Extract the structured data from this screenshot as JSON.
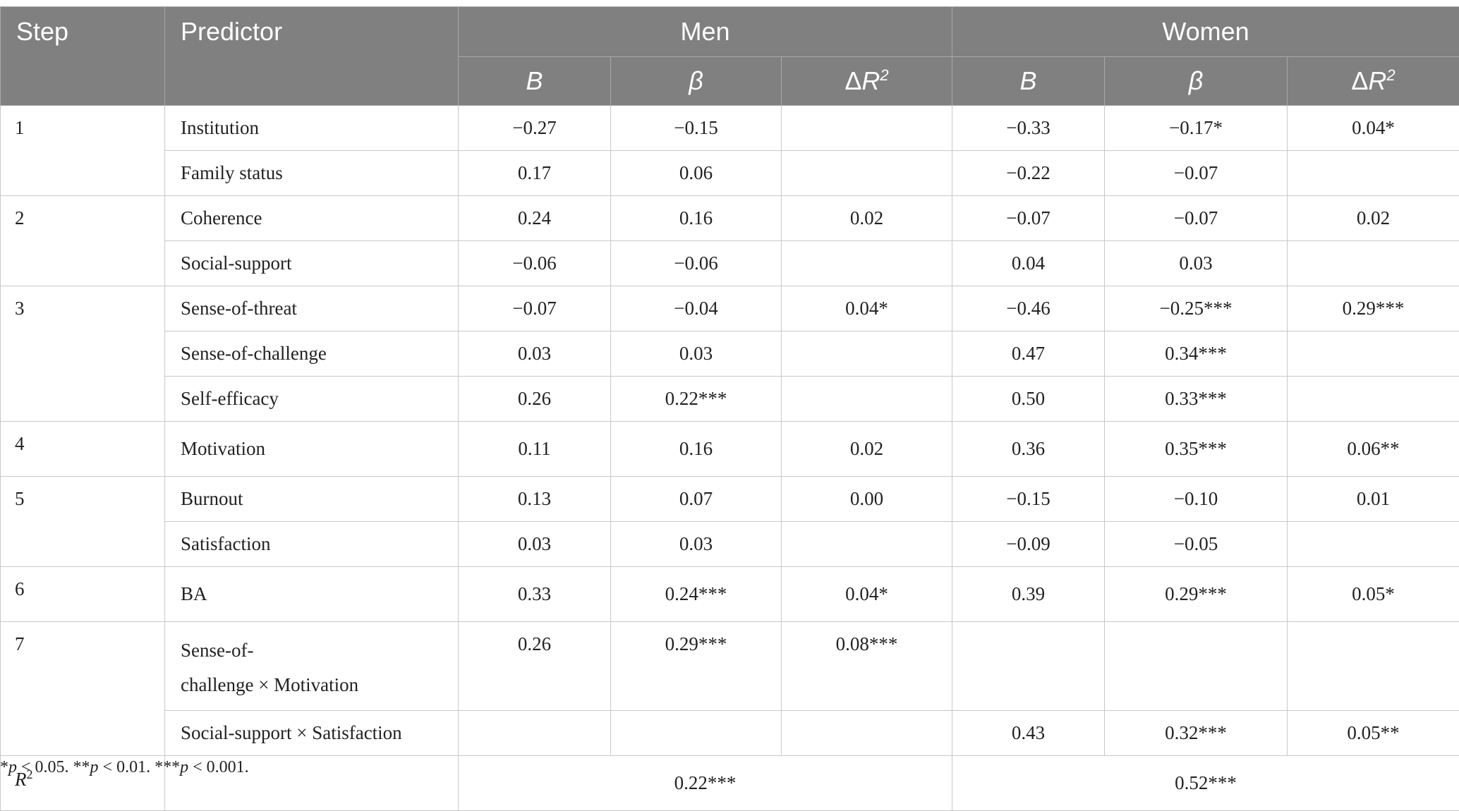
{
  "table": {
    "headers": {
      "step": "Step",
      "predictor": "Predictor",
      "men": "Men",
      "women": "Women",
      "sub": [
        "B",
        "β",
        "ΔR2",
        "B",
        "β",
        "ΔR2"
      ]
    },
    "rows": [
      {
        "step": "1",
        "predictor": "Institution",
        "men_b": "−0.27",
        "men_beta": "−0.15",
        "men_dr2": "",
        "women_b": "−0.33",
        "women_beta": "−0.17*",
        "women_dr2": "0.04*"
      },
      {
        "step": "",
        "predictor": "Family status",
        "men_b": "0.17",
        "men_beta": "0.06",
        "men_dr2": "",
        "women_b": "−0.22",
        "women_beta": "−0.07",
        "women_dr2": ""
      },
      {
        "step": "2",
        "predictor": "Coherence",
        "men_b": "0.24",
        "men_beta": "0.16",
        "men_dr2": "0.02",
        "women_b": "−0.07",
        "women_beta": "−0.07",
        "women_dr2": "0.02"
      },
      {
        "step": "",
        "predictor": "Social-support",
        "men_b": "−0.06",
        "men_beta": "−0.06",
        "men_dr2": "",
        "women_b": "0.04",
        "women_beta": "0.03",
        "women_dr2": ""
      },
      {
        "step": "3",
        "predictor": "Sense-of-threat",
        "men_b": "−0.07",
        "men_beta": "−0.04",
        "men_dr2": "0.04*",
        "women_b": "−0.46",
        "women_beta": "−0.25***",
        "women_dr2": "0.29***"
      },
      {
        "step": "",
        "predictor": "Sense-of-challenge",
        "men_b": "0.03",
        "men_beta": "0.03",
        "men_dr2": "",
        "women_b": "0.47",
        "women_beta": "0.34***",
        "women_dr2": ""
      },
      {
        "step": "",
        "predictor": "Self-efficacy",
        "men_b": "0.26",
        "men_beta": "0.22***",
        "men_dr2": "",
        "women_b": "0.50",
        "women_beta": "0.33***",
        "women_dr2": ""
      },
      {
        "step": "4",
        "predictor": "Motivation",
        "men_b": "0.11",
        "men_beta": "0.16",
        "men_dr2": "0.02",
        "women_b": "0.36",
        "women_beta": "0.35***",
        "women_dr2": "0.06**"
      },
      {
        "step": "5",
        "predictor": "Burnout",
        "men_b": "0.13",
        "men_beta": "0.07",
        "men_dr2": "0.00",
        "women_b": "−0.15",
        "women_beta": "−0.10",
        "women_dr2": "0.01"
      },
      {
        "step": "",
        "predictor": "Satisfaction",
        "men_b": "0.03",
        "men_beta": "0.03",
        "men_dr2": "",
        "women_b": "−0.09",
        "women_beta": "−0.05",
        "women_dr2": ""
      },
      {
        "step": "6",
        "predictor": "BA",
        "men_b": "0.33",
        "men_beta": "0.24***",
        "men_dr2": "0.04*",
        "women_b": "0.39",
        "women_beta": "0.29***",
        "women_dr2": "0.05*"
      },
      {
        "step": "7",
        "predictor_line1": "Sense-of-",
        "predictor_line2": "challenge × Motivation",
        "men_b": "0.26",
        "men_beta": "0.29***",
        "men_dr2": "0.08***",
        "women_b": "",
        "women_beta": "",
        "women_dr2": ""
      },
      {
        "step": "",
        "predictor": "Social-support × Satisfaction",
        "men_b": "",
        "men_beta": "",
        "men_dr2": "",
        "women_b": "0.43",
        "women_beta": "0.32***",
        "women_dr2": "0.05**"
      }
    ],
    "r2_row": {
      "label": "R2",
      "men": "0.22***",
      "women": "0.52***"
    }
  },
  "footnote": {
    "s1": "*",
    "p1": "p",
    "t1": " < 0.05. **",
    "p2": "p",
    "t2": " < 0.01. ***",
    "p3": "p",
    "t3": " < 0.001."
  }
}
